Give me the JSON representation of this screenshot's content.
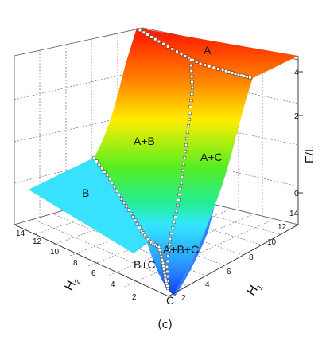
{
  "chart_data": {
    "type": "surface3d",
    "caption": "(c)",
    "z_axis": {
      "label": "E/L",
      "ticks": [
        "0",
        "2",
        "4"
      ]
    },
    "h1_axis": {
      "label": "H",
      "subscript": "1",
      "ticks": [
        "2",
        "4",
        "6",
        "8",
        "10",
        "12",
        "14"
      ]
    },
    "h2_axis": {
      "label": "H",
      "subscript": "2",
      "ticks": [
        "2",
        "4",
        "6",
        "8",
        "10",
        "12",
        "14"
      ]
    },
    "regions": [
      "A",
      "A+B",
      "A+C",
      "B",
      "A+B+C",
      "B+C",
      "C"
    ],
    "colors": {
      "high": "#ff2200",
      "mid": "#ffee00",
      "green": "#33ee22",
      "cyan": "#33e6ff",
      "low": "#1030ff"
    }
  }
}
